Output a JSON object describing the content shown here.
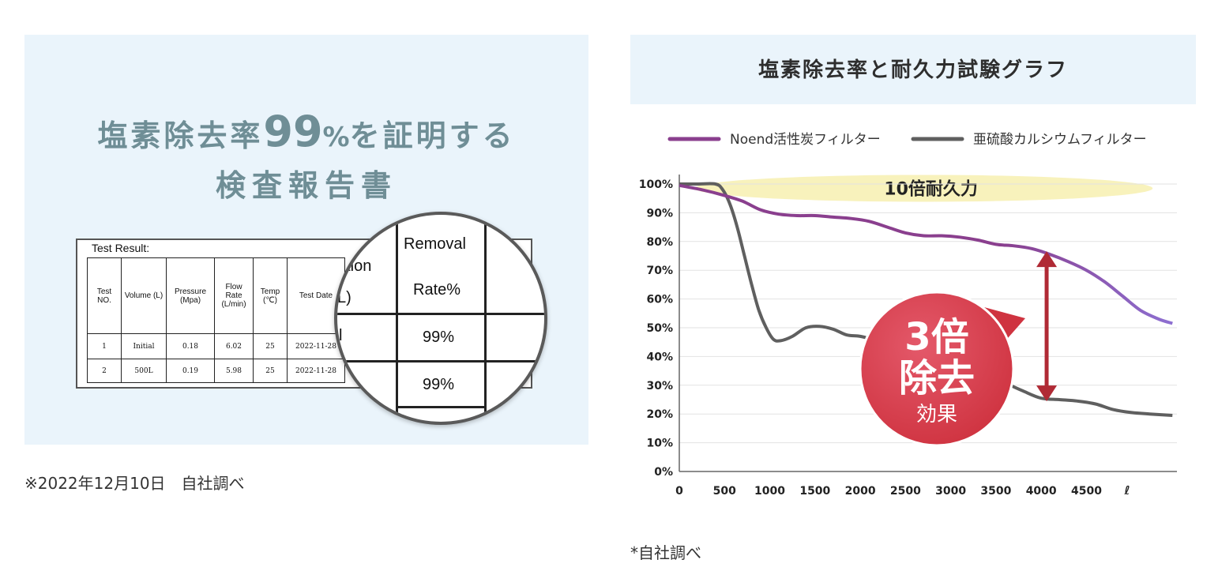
{
  "left": {
    "headline_pre": "塩素除去率",
    "headline_num": "99",
    "headline_pct": "%",
    "headline_post": "を証明する",
    "headline_line2": "検査報告書",
    "report": {
      "title": "Test Result:",
      "headers": [
        "Test NO.",
        "Volume (L)",
        "Pressure (Mpa)",
        "Flow Rate (L/min)",
        "Temp (℃)",
        "Test Date"
      ],
      "rows": [
        [
          "1",
          "Initial",
          "0.18",
          "6.02",
          "25",
          "2022-11-28"
        ],
        [
          "2",
          "500L",
          "0.19",
          "5.98",
          "25",
          "2022-11-28"
        ]
      ]
    },
    "magnifier": {
      "partial_header": "ation",
      "partial_unit": "L)",
      "partial_cell": "l",
      "header_line1": "Removal",
      "header_line2": "Rate%",
      "values": [
        "99%",
        "99%"
      ]
    },
    "note": "※2022年12月10日　自社調べ"
  },
  "right": {
    "title": "塩素除去率と耐久力試験グラフ",
    "note": "*自社調べ",
    "band_label": "10倍耐久力",
    "badge": {
      "line1": "3倍",
      "line2": "除去",
      "line3": "効果"
    },
    "colors": {
      "noend": "#8a3f8e",
      "noend_tail": "#8d6fd1",
      "sulfite": "#5f5f5f",
      "badge": "#cf3340",
      "arrow": "#b02a35",
      "band": "#f7f0b0"
    }
  },
  "chart_data": {
    "type": "line",
    "xlabel": "",
    "ylabel": "",
    "x_unit": "ℓ",
    "xlim": [
      0,
      5500
    ],
    "ylim": [
      0,
      100
    ],
    "x_ticks": [
      0,
      500,
      1000,
      1500,
      2000,
      2500,
      3000,
      3500,
      4000,
      4500
    ],
    "y_ticks": [
      "0%",
      "10%",
      "20%",
      "30%",
      "40%",
      "50%",
      "60%",
      "70%",
      "80%",
      "90%",
      "100%"
    ],
    "grid": true,
    "legend_position": "top",
    "series": [
      {
        "name": "Noend活性炭フィルター",
        "x": [
          0,
          250,
          500,
          700,
          900,
          1100,
          1300,
          1500,
          1700,
          1900,
          2100,
          2300,
          2500,
          2700,
          2900,
          3100,
          3300,
          3500,
          3700,
          3900,
          4100,
          4300,
          4500,
          4700,
          4900,
          5100,
          5300,
          5450
        ],
        "y": [
          99.5,
          98,
          96,
          94,
          91,
          89.5,
          89,
          89,
          88.5,
          88,
          87,
          85,
          83,
          82,
          82,
          81.5,
          80.5,
          79,
          78.5,
          77.5,
          75.5,
          73,
          70,
          66,
          61,
          56,
          53,
          51.5
        ]
      },
      {
        "name": "亜硫酸カルシウムフィルター",
        "x": [
          0,
          200,
          400,
          480,
          560,
          640,
          720,
          800,
          880,
          960,
          1040,
          1120,
          1250,
          1400,
          1550,
          1700,
          1850,
          2000,
          2200,
          2400,
          2600,
          2800,
          3000,
          3200,
          3400,
          3600,
          3800,
          4000,
          4200,
          4400,
          4600,
          4800,
          5000,
          5200,
          5450
        ],
        "y": [
          100,
          100,
          100,
          98,
          93,
          85,
          75,
          65,
          56,
          50,
          46,
          45.5,
          47,
          50,
          50.5,
          49.5,
          47.5,
          47,
          45.5,
          44,
          43,
          42,
          40,
          38,
          35.5,
          31,
          28,
          25.5,
          25,
          24.5,
          23.5,
          21.5,
          20.5,
          20,
          19.5
        ]
      }
    ],
    "annotations": [
      "10倍耐久力",
      "3倍除去効果"
    ]
  }
}
